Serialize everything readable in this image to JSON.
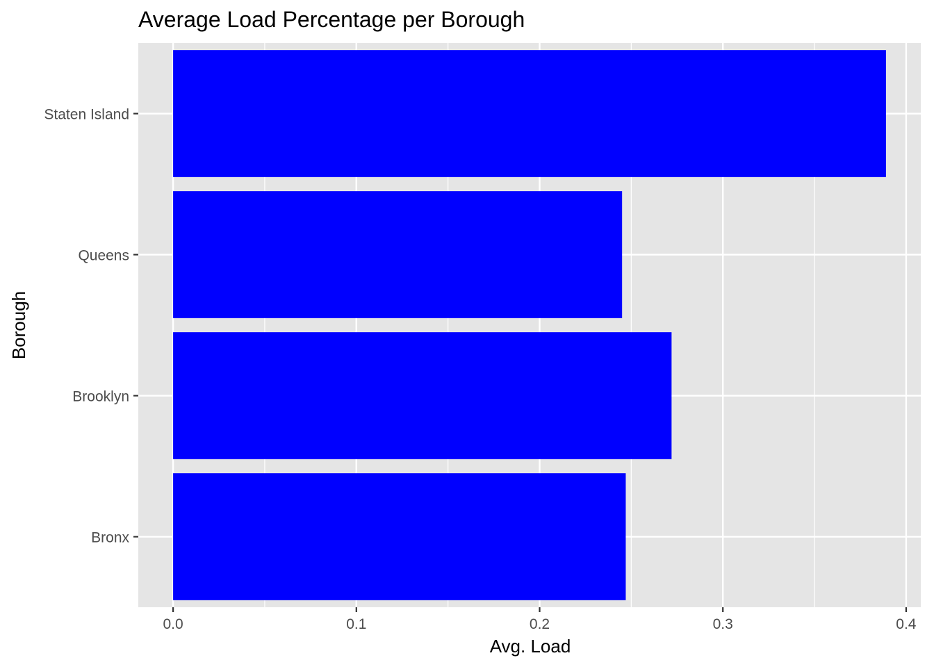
{
  "chart_data": {
    "type": "bar",
    "orientation": "horizontal",
    "title": "Average Load Percentage per Borough",
    "xlabel": "Avg. Load",
    "ylabel": "Borough",
    "categories": [
      "Bronx",
      "Brooklyn",
      "Queens",
      "Staten Island"
    ],
    "values": [
      0.247,
      0.272,
      0.245,
      0.389
    ],
    "xlim": [
      -0.019,
      0.408
    ],
    "xticks": [
      "0.0",
      "0.1",
      "0.2",
      "0.3",
      "0.4"
    ],
    "grid": true,
    "legend": "none",
    "colors": {
      "bar": "#0000ff",
      "panel": "#e5e5e5",
      "grid": "#ffffff",
      "tick_text": "#4d4d4d"
    }
  }
}
